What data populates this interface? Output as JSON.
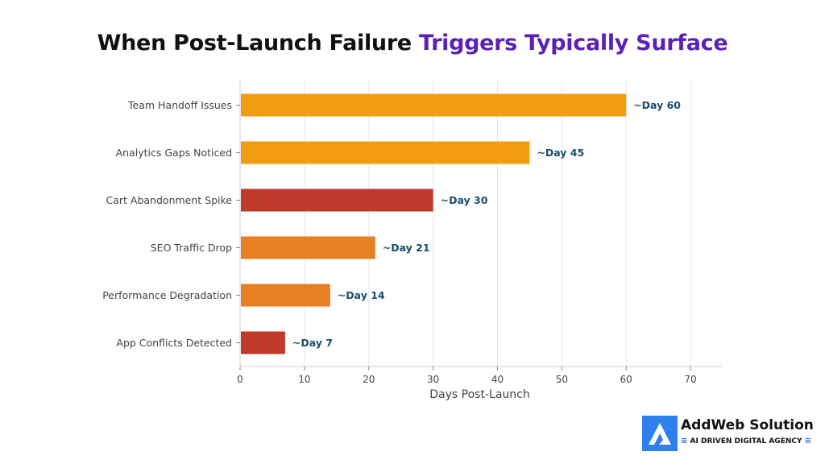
{
  "title": {
    "part1": "When Post-Launch Failure",
    "part2": "Triggers Typically Surface"
  },
  "chart_data": {
    "type": "bar",
    "orientation": "horizontal",
    "categories": [
      "Team Handoff Issues",
      "Analytics Gaps Noticed",
      "Cart Abandonment Spike",
      "SEO Traffic Drop",
      "Performance Degradation",
      "App Conflicts Detected"
    ],
    "values": [
      60,
      45,
      30,
      21,
      14,
      7
    ],
    "data_labels": [
      "~Day 60",
      "~Day 45",
      "~Day 30",
      "~Day 21",
      "~Day 14",
      "~Day 7"
    ],
    "colors": [
      "#f39c12",
      "#f39c12",
      "#c0392b",
      "#e67e22",
      "#e67e22",
      "#c0392b"
    ],
    "xlabel": "Days Post-Launch",
    "ylabel": "",
    "xlim": [
      0,
      75
    ],
    "xticks": [
      "0",
      "10",
      "20",
      "30",
      "40",
      "50",
      "60",
      "70"
    ],
    "grid": "vertical",
    "label_color": "#1a4d6e"
  },
  "brand": {
    "name": "AddWeb Solution",
    "tagline": "AI DRIVEN DIGITAL AGENCY",
    "logo_icon": "addweb-logo-icon",
    "logo_color": "#2f80ed"
  }
}
